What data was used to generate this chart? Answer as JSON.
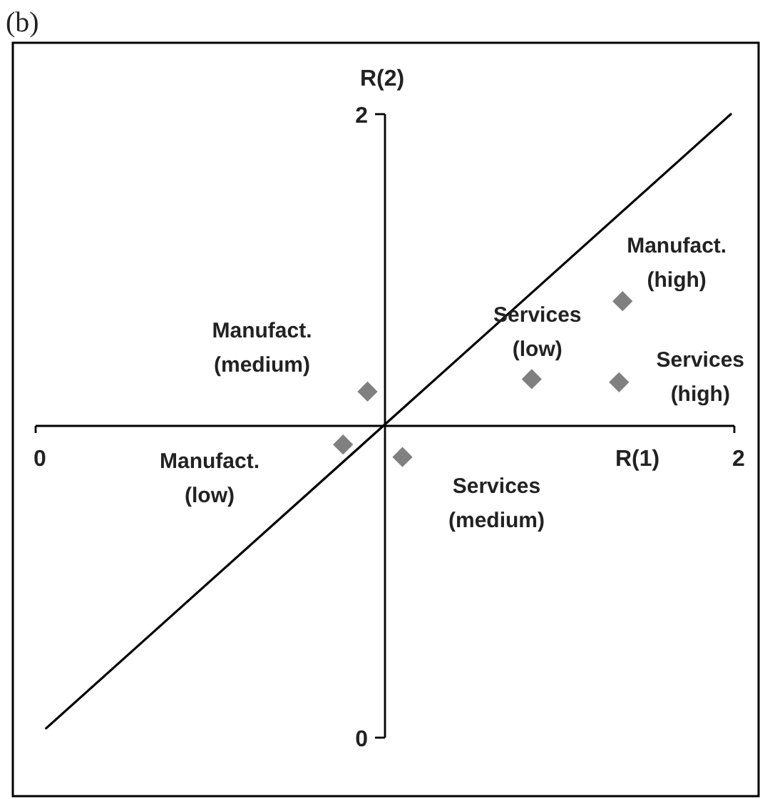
{
  "chart_data": {
    "type": "scatter",
    "title": "(b)",
    "xlabel": "R(1)",
    "ylabel": "R(2)",
    "xlim": [
      0,
      2
    ],
    "ylim": [
      0,
      2
    ],
    "xticks": [
      0,
      2
    ],
    "yticks": [
      0,
      2
    ],
    "series": [
      {
        "type": "line",
        "color": "#000000",
        "x": [
          0.03,
          1.99
        ],
        "values": [
          0.03,
          2.0
        ],
        "marker": "none",
        "line_style": "solid"
      },
      {
        "color": "#808080",
        "x": [
          0.95,
          0.88,
          1.05,
          1.42,
          1.67,
          1.68
        ],
        "values": [
          1.11,
          0.94,
          0.9,
          1.15,
          1.14,
          1.4
        ],
        "marker": "diamond"
      }
    ],
    "annotations": [
      {
        "text": "Manufact.\n(medium)",
        "x": 0.95,
        "y": 1.11
      },
      "Manufact.\n(low)",
      {
        "text": "Services\n(medium)",
        "x": 1.05,
        "y": 0.9
      },
      {
        "text": "Services\n(low)",
        "x": 1.42,
        "y": 1.15
      },
      {
        "text": "Services\n(high)",
        "x": 1.67,
        "y": 1.14
      },
      {
        "text": "Manufact.\n(high)",
        "x": 1.68,
        "y": 1.4
      }
    ],
    "grid": false
  }
}
